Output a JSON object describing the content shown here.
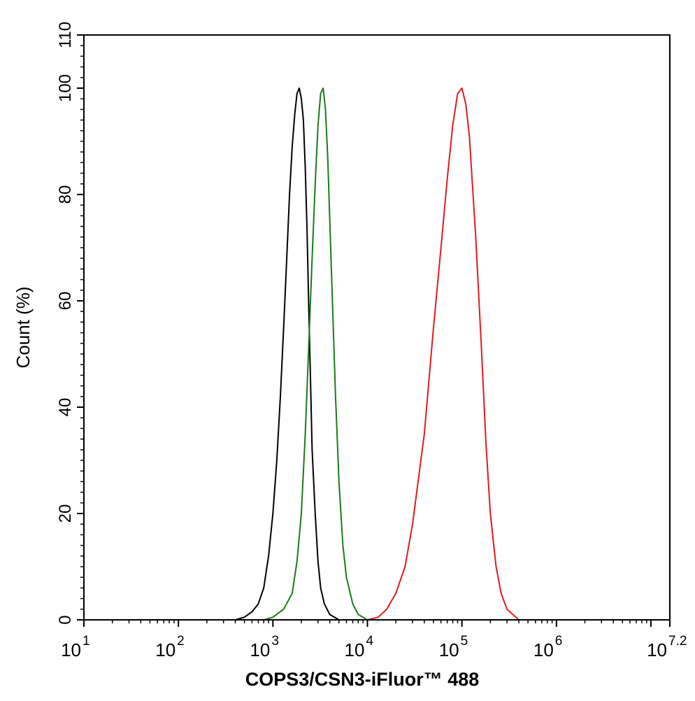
{
  "chart_data": {
    "type": "line",
    "xlabel": "COPS3/CSN3-iFluor™ 488",
    "ylabel": "Count  (%)",
    "x_scale": "log",
    "xlim": [
      1,
      7.2
    ],
    "ylim": [
      0,
      110
    ],
    "x_tick_labels": [
      {
        "base": "10",
        "exp": "1"
      },
      {
        "base": "10",
        "exp": "2"
      },
      {
        "base": "10",
        "exp": "3"
      },
      {
        "base": "10",
        "exp": "4"
      },
      {
        "base": "10",
        "exp": "5"
      },
      {
        "base": "10",
        "exp": "6"
      },
      {
        "base": "10",
        "exp": "7.2"
      }
    ],
    "y_ticks": [
      0,
      20,
      40,
      60,
      80,
      100,
      110
    ],
    "series": [
      {
        "color": "#000000",
        "x": [
          400,
          500,
          600,
          700,
          800,
          900,
          1000,
          1100,
          1200,
          1300,
          1400,
          1500,
          1600,
          1700,
          1800,
          1900,
          2000,
          2100,
          2200,
          2300,
          2400,
          2500,
          2600,
          2800,
          3000,
          3200,
          3500,
          4000,
          5000
        ],
        "y": [
          0,
          0.5,
          1.5,
          3,
          6,
          12,
          20,
          30,
          42,
          55,
          68,
          80,
          89,
          95,
          99,
          100,
          98,
          94,
          85,
          73,
          58,
          45,
          32,
          20,
          11,
          6,
          3,
          1,
          0
        ]
      },
      {
        "color": "#1a7a1a",
        "x": [
          800,
          1000,
          1300,
          1600,
          1800,
          2000,
          2200,
          2400,
          2600,
          2800,
          3000,
          3200,
          3400,
          3600,
          3800,
          4000,
          4300,
          4600,
          5000,
          5500,
          6000,
          7000,
          8000,
          10000
        ],
        "y": [
          0,
          0.5,
          2,
          5,
          11,
          20,
          35,
          52,
          68,
          82,
          93,
          99,
          100,
          96,
          87,
          75,
          58,
          42,
          26,
          14,
          8,
          3,
          1,
          0
        ]
      },
      {
        "color": "#e31a1c",
        "x": [
          10000,
          13000,
          16000,
          20000,
          25000,
          30000,
          40000,
          50000,
          60000,
          70000,
          80000,
          90000,
          100000,
          110000,
          120000,
          140000,
          160000,
          180000,
          200000,
          230000,
          260000,
          300000,
          400000
        ],
        "y": [
          0,
          0.5,
          2,
          5,
          10,
          18,
          35,
          55,
          70,
          83,
          93,
          99,
          100,
          97,
          91,
          72,
          52,
          33,
          20,
          10,
          5,
          2,
          0
        ]
      }
    ]
  }
}
